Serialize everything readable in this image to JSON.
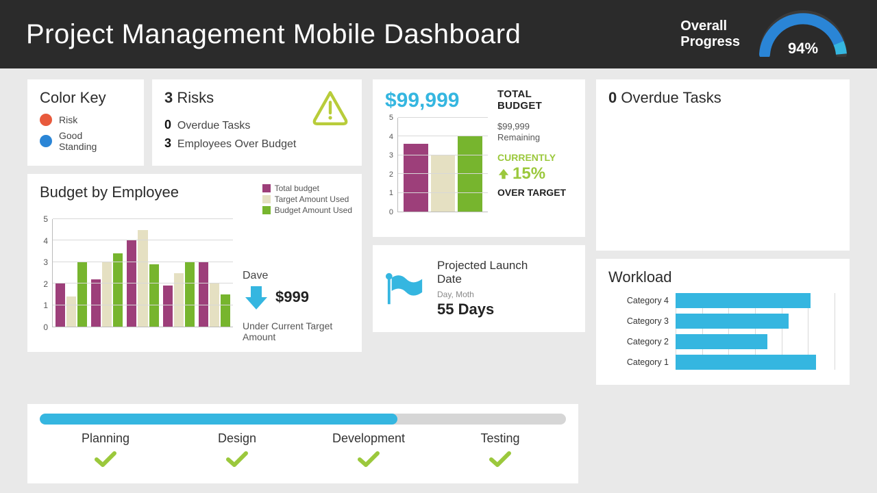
{
  "header": {
    "title": "Project Management Mobile Dashboard",
    "overall_label": "Overall\nProgress",
    "overall_pct": "94%",
    "gauge": {
      "value": 0.94,
      "arc_color": "#2a85d6",
      "tip_color": "#35b6e0",
      "track_color": "#2b2b2b"
    }
  },
  "colors": {
    "blue": "#35b6e0",
    "blue2": "#2a85d6",
    "green": "#9bc83c",
    "purple": "#9d3f7a",
    "beige": "#e5e0c2",
    "orange": "#e85a3c",
    "grid": "#d8d8d8",
    "card_bg": "#ffffff",
    "page_bg": "#e9e9e9"
  },
  "color_key": {
    "title": "Color Key",
    "items": [
      {
        "label": "Risk",
        "color": "#e85a3c"
      },
      {
        "label": "Good Standing",
        "color": "#2a85d6"
      }
    ]
  },
  "risks": {
    "title_count": "3",
    "title_word": "Risks",
    "lines": [
      {
        "count": "0",
        "label": "Overdue Tasks"
      },
      {
        "count": "3",
        "label": "Employees Over Budget"
      }
    ],
    "icon_color": "#b8cc3a"
  },
  "budget_by_employee": {
    "title": "Budget by Employee",
    "type": "grouped-bar",
    "legend": [
      {
        "label": "Total budget",
        "color": "#9d3f7a"
      },
      {
        "label": "Target Amount Used",
        "color": "#e5e0c2"
      },
      {
        "label": "Budget Amount Used",
        "color": "#77b52e"
      }
    ],
    "ylim": [
      0,
      5
    ],
    "yticks": [
      0,
      1,
      2,
      3,
      4,
      5
    ],
    "groups": [
      {
        "values": [
          2.0,
          1.4,
          3.0
        ]
      },
      {
        "values": [
          2.2,
          3.0,
          3.4
        ]
      },
      {
        "values": [
          4.0,
          4.5,
          2.9
        ]
      },
      {
        "values": [
          1.9,
          2.5,
          3.0
        ]
      },
      {
        "values": [
          3.0,
          2.0,
          1.5
        ]
      }
    ],
    "bar_colors": [
      "#9d3f7a",
      "#e5e0c2",
      "#77b52e"
    ],
    "callout": {
      "name": "Dave",
      "amount": "$999",
      "subtext": "Under Current Target Amount",
      "arrow_color": "#35b6e0"
    }
  },
  "total_budget": {
    "amount": "$99,999",
    "heading": "TOTAL BUDGET",
    "remaining_value": "$99,999",
    "remaining_label": "Remaining",
    "currently_label": "CURRENTLY",
    "pct": "15%",
    "over_target": "OVER TARGET",
    "chart": {
      "type": "bar",
      "ylim": [
        0,
        5
      ],
      "yticks": [
        0,
        1,
        2,
        3,
        4,
        5
      ],
      "values": [
        3.6,
        3.0,
        4.0
      ],
      "colors": [
        "#9d3f7a",
        "#e5e0c2",
        "#77b52e"
      ]
    }
  },
  "launch": {
    "title": "Projected Launch Date",
    "subtitle": "Day, Moth",
    "days": "55 Days",
    "flag_color": "#35b6e0"
  },
  "overdue": {
    "count": "0",
    "label": "Overdue Tasks"
  },
  "workload": {
    "title": "Workload",
    "type": "horizontal-bar",
    "xlim": [
      0,
      6
    ],
    "xticks": [
      0,
      1,
      2,
      3,
      4,
      5,
      6
    ],
    "bar_color": "#35b6e0",
    "items": [
      {
        "label": "Category 4",
        "value": 5.0
      },
      {
        "label": "Category 3",
        "value": 4.2
      },
      {
        "label": "Category 2",
        "value": 3.4
      },
      {
        "label": "Category 1",
        "value": 5.2
      }
    ]
  },
  "phases": {
    "progress": 0.68,
    "fill_color": "#35b6e0",
    "track_color": "#d6d6d6",
    "check_color": "#9bc83c",
    "items": [
      {
        "label": "Planning",
        "done": true
      },
      {
        "label": "Design",
        "done": true
      },
      {
        "label": "Development",
        "done": true
      },
      {
        "label": "Testing",
        "done": true
      }
    ]
  }
}
